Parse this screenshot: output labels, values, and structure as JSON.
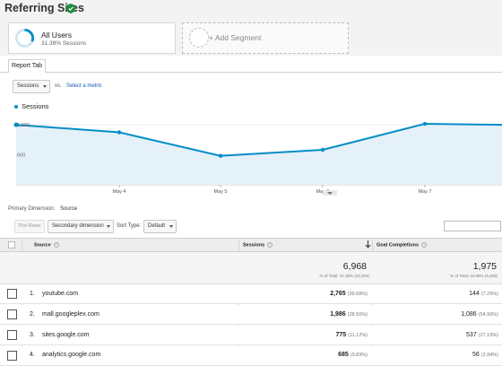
{
  "header": {
    "title": "Referring Sites"
  },
  "segments": {
    "active": {
      "name": "All Users",
      "subtitle": "31.38% Sessions",
      "ring_fraction": 0.3138
    },
    "add_label": "+ Add Segment"
  },
  "tabs": [
    {
      "label": "Report Tab"
    }
  ],
  "metric_selector": {
    "selected": "Sessions",
    "vs_label": "vs.",
    "select_metric_link": "Select a metric"
  },
  "chart_data": {
    "type": "area",
    "series": [
      {
        "name": "Sessions",
        "values": [
          1200,
          1050,
          580,
          700,
          1220,
          1200
        ]
      }
    ],
    "x_positions_labels": [
      "",
      "May 4",
      "May 5",
      "May 6",
      "May 7",
      ""
    ],
    "ylim": [
      0,
      1400
    ],
    "y_ticks": [
      1200,
      600
    ],
    "y_tick_labels": [
      "1,200",
      "600"
    ],
    "x_tick_labels": [
      "May 4",
      "May 5",
      "May 6",
      "May 7"
    ],
    "legend": "top-left",
    "grid": true,
    "color": "#058dc7",
    "fill": "#e5f1f8"
  },
  "dimension_row": {
    "primary_label": "Primary Dimension:",
    "primary_value": "Source",
    "plot_rows": "Plot Rows",
    "secondary_dimension": "Secondary dimension",
    "sort_type_label": "Sort Type:",
    "sort_type_value": "Default"
  },
  "table": {
    "headers": {
      "source": "Source",
      "sessions": "Sessions",
      "goal": "Goal Completions"
    },
    "totals": {
      "sessions": "6,968",
      "sessions_sub": "% of Total: 31.38% (22,204)",
      "goal": "1,975",
      "goal_sub": "% of Total: 44.06% (4,483)"
    },
    "rows": [
      {
        "index": "1.",
        "source": "youtube.com",
        "sessions": "2,765",
        "sessions_pct": "(39.68%)",
        "goal": "144",
        "goal_pct": "(7.29%)"
      },
      {
        "index": "2.",
        "source": "mall.googleplex.com",
        "sessions": "1,986",
        "sessions_pct": "(28.50%)",
        "goal": "1,086",
        "goal_pct": "(54.99%)"
      },
      {
        "index": "3.",
        "source": "sites.google.com",
        "sessions": "775",
        "sessions_pct": "(11.12%)",
        "goal": "537",
        "goal_pct": "(27.19%)"
      },
      {
        "index": "4.",
        "source": "analytics.google.com",
        "sessions": "685",
        "sessions_pct": "(9.83%)",
        "goal": "56",
        "goal_pct": "(2.84%)"
      }
    ]
  },
  "colors": {
    "accent": "#058dc7",
    "link": "#1a55b3",
    "shield": "#1e8e3e"
  }
}
